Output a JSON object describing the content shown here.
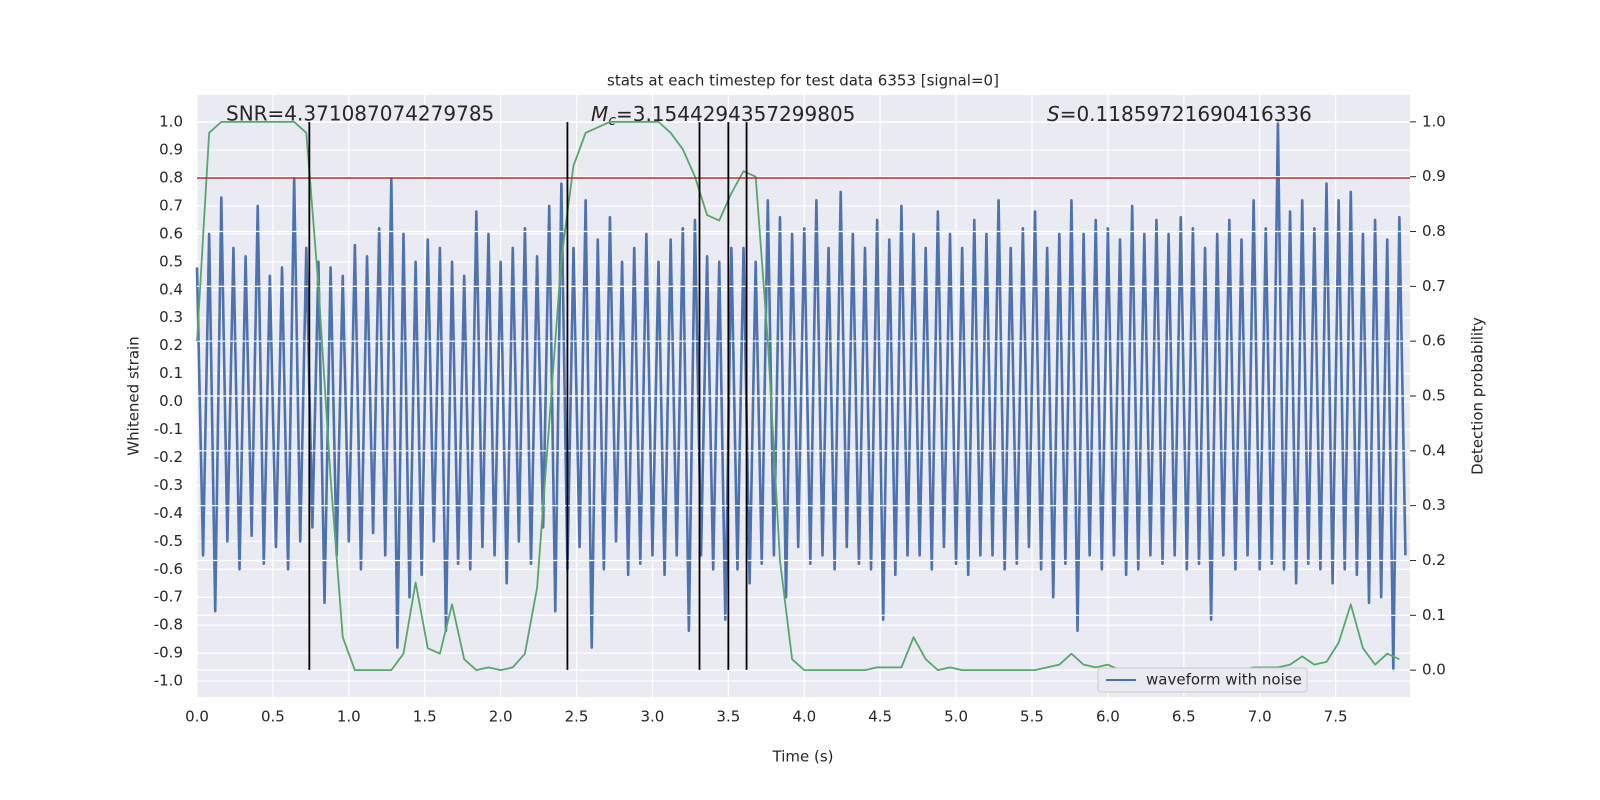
{
  "chart_data": {
    "type": "line",
    "title": "stats at each timestep for test data 6353 [signal=0]",
    "xlabel": "Time (s)",
    "ylabel": "Whitened strain",
    "y2label": "Detection probability",
    "annotations": {
      "snr": "SNR=4.371087074279785",
      "mc_symbol": "M",
      "mc_subscript": "c",
      "mc_value": "=3.1544294357299805",
      "s_symbol": "S",
      "s_value": "=0.11859721690416336"
    },
    "xlim": [
      0,
      7.99
    ],
    "ylim": [
      -1.057,
      1.097
    ],
    "y2lim": [
      -0.049,
      1.049
    ],
    "xticks": [
      {
        "value": 0,
        "label": "0.0"
      },
      0.5,
      {
        "value": 1,
        "label": "1.0"
      },
      1.5,
      {
        "value": 2,
        "label": "2.0"
      },
      2.5,
      {
        "value": 3,
        "label": "3.0"
      },
      3.5,
      {
        "value": 4,
        "label": "4.0"
      },
      4.5,
      {
        "value": 5,
        "label": "5.0"
      },
      5.5,
      {
        "value": 6,
        "label": "6.0"
      },
      6.5,
      {
        "value": 7,
        "label": "7.0"
      },
      7.5
    ],
    "yticks": [
      {
        "value": -1,
        "label": "-1.0"
      },
      -0.9,
      -0.8,
      -0.7,
      -0.6,
      -0.5,
      -0.4,
      -0.3,
      -0.2,
      -0.1,
      {
        "value": 0,
        "label": "0.0"
      },
      0.1,
      0.2,
      0.3,
      0.4,
      0.5,
      0.6,
      0.7,
      0.8,
      0.9,
      {
        "value": 1,
        "label": "1.0"
      }
    ],
    "y2ticks": [
      {
        "value": 0,
        "label": "0.0"
      },
      0.1,
      0.2,
      0.3,
      0.4,
      0.5,
      0.6,
      0.7,
      0.8,
      0.9,
      {
        "value": 1,
        "label": "1.0"
      }
    ],
    "grid": true,
    "legend_loc": "lower right",
    "hline": {
      "y": 0.8,
      "color": "#b5302f"
    },
    "vlines": {
      "x": [
        0.74,
        2.44,
        3.31,
        3.5,
        3.62
      ],
      "ymin": -0.96,
      "ymax": 1.0,
      "color": "#000000"
    },
    "series": [
      {
        "name": "waveform with noise",
        "color": "#4c72b0",
        "x": [
          0,
          0.04,
          0.08,
          0.12,
          0.16,
          0.2,
          0.24,
          0.28,
          0.32,
          0.36,
          0.4,
          0.44,
          0.48,
          0.52,
          0.56,
          0.6,
          0.64,
          0.68,
          0.72,
          0.76,
          0.8,
          0.84,
          0.88,
          0.92,
          0.96,
          1,
          1.04,
          1.08,
          1.12,
          1.16,
          1.2,
          1.24,
          1.28,
          1.32,
          1.36,
          1.4,
          1.44,
          1.48,
          1.52,
          1.56,
          1.6,
          1.64,
          1.68,
          1.72,
          1.76,
          1.8,
          1.84,
          1.88,
          1.92,
          1.96,
          2,
          2.04,
          2.08,
          2.12,
          2.16,
          2.2,
          2.24,
          2.28,
          2.32,
          2.36,
          2.4,
          2.44,
          2.48,
          2.52,
          2.56,
          2.6,
          2.64,
          2.68,
          2.72,
          2.76,
          2.8,
          2.84,
          2.88,
          2.92,
          2.96,
          3,
          3.04,
          3.08,
          3.12,
          3.16,
          3.2,
          3.24,
          3.28,
          3.32,
          3.36,
          3.4,
          3.44,
          3.48,
          3.52,
          3.56,
          3.6,
          3.64,
          3.68,
          3.72,
          3.76,
          3.8,
          3.84,
          3.88,
          3.92,
          3.96,
          4,
          4.04,
          4.08,
          4.12,
          4.16,
          4.2,
          4.24,
          4.28,
          4.32,
          4.36,
          4.4,
          4.44,
          4.48,
          4.52,
          4.56,
          4.6,
          4.64,
          4.68,
          4.72,
          4.76,
          4.8,
          4.84,
          4.88,
          4.92,
          4.96,
          5,
          5.04,
          5.08,
          5.12,
          5.16,
          5.2,
          5.24,
          5.28,
          5.32,
          5.36,
          5.4,
          5.44,
          5.48,
          5.52,
          5.56,
          5.6,
          5.64,
          5.68,
          5.72,
          5.76,
          5.8,
          5.84,
          5.88,
          5.92,
          5.96,
          6,
          6.04,
          6.08,
          6.12,
          6.16,
          6.2,
          6.24,
          6.28,
          6.32,
          6.36,
          6.4,
          6.44,
          6.48,
          6.52,
          6.56,
          6.6,
          6.64,
          6.68,
          6.72,
          6.76,
          6.8,
          6.84,
          6.88,
          6.92,
          6.96,
          7,
          7.04,
          7.08,
          7.12,
          7.16,
          7.2,
          7.24,
          7.28,
          7.32,
          7.36,
          7.4,
          7.44,
          7.48,
          7.52,
          7.56,
          7.6,
          7.64,
          7.68,
          7.72,
          7.76,
          7.8,
          7.84,
          7.88,
          7.92,
          7.96
        ],
        "values": [
          0.48,
          -0.55,
          0.6,
          -0.75,
          0.73,
          -0.5,
          0.55,
          -0.6,
          0.52,
          -0.48,
          0.7,
          -0.58,
          0.45,
          -0.52,
          0.48,
          -0.6,
          0.8,
          -0.5,
          0.55,
          -0.45,
          0.5,
          -0.72,
          0.48,
          -0.55,
          0.45,
          -0.5,
          0.56,
          -0.6,
          0.52,
          -0.47,
          0.62,
          -0.55,
          0.8,
          -0.88,
          0.6,
          -0.7,
          0.5,
          -0.62,
          0.58,
          -0.5,
          0.55,
          -0.82,
          0.5,
          -0.58,
          0.45,
          -0.6,
          0.68,
          -0.52,
          0.6,
          -0.55,
          0.5,
          -0.65,
          0.55,
          -0.5,
          0.62,
          -0.58,
          0.52,
          -0.45,
          0.7,
          -0.75,
          0.78,
          -0.6,
          0.55,
          -0.52,
          0.72,
          -0.88,
          0.58,
          -0.6,
          0.66,
          -0.5,
          0.5,
          -0.62,
          0.55,
          -0.58,
          0.6,
          -0.55,
          0.5,
          -0.62,
          0.58,
          -0.55,
          0.62,
          -0.82,
          0.65,
          -0.55,
          0.52,
          -0.6,
          0.5,
          -0.78,
          0.55,
          -0.6,
          0.55,
          -0.65,
          0.5,
          -0.58,
          0.72,
          -0.55,
          0.66,
          -0.7,
          0.6,
          -0.52,
          0.62,
          -0.58,
          0.72,
          -0.55,
          0.55,
          -0.6,
          0.75,
          -0.52,
          0.6,
          -0.58,
          0.55,
          -0.6,
          0.65,
          -0.78,
          0.58,
          -0.62,
          0.7,
          -0.55,
          0.6,
          -0.55,
          0.55,
          -0.6,
          0.68,
          -0.52,
          0.6,
          -0.58,
          0.55,
          -0.62,
          0.65,
          -0.55,
          0.6,
          -0.55,
          0.72,
          -0.6,
          0.55,
          -0.58,
          0.62,
          -0.52,
          0.68,
          -0.6,
          0.55,
          -0.7,
          0.6,
          -0.58,
          0.72,
          -0.82,
          0.6,
          -0.55,
          0.65,
          -0.6,
          0.62,
          -0.55,
          0.58,
          -0.62,
          0.7,
          -0.6,
          0.6,
          -0.55,
          0.65,
          -0.58,
          0.6,
          -0.55,
          0.66,
          -0.6,
          0.62,
          -0.58,
          0.55,
          -0.78,
          0.6,
          -0.55,
          0.65,
          -0.6,
          0.58,
          -0.55,
          0.72,
          -0.6,
          0.62,
          -0.58,
          1.0,
          -0.6,
          0.68,
          -0.65,
          0.72,
          -0.58,
          0.62,
          -0.6,
          0.78,
          -0.65,
          0.72,
          -0.6,
          0.75,
          -0.62,
          0.6,
          -0.72,
          0.65,
          -0.7,
          0.58,
          -0.96,
          0.66,
          -0.55
        ]
      },
      {
        "color": "#55a868",
        "axis": "y2",
        "x": [
          0,
          0.08,
          0.16,
          0.24,
          0.32,
          0.4,
          0.48,
          0.56,
          0.64,
          0.72,
          0.8,
          0.88,
          0.96,
          1.04,
          1.12,
          1.2,
          1.28,
          1.36,
          1.44,
          1.52,
          1.6,
          1.68,
          1.76,
          1.84,
          1.92,
          2,
          2.08,
          2.16,
          2.24,
          2.32,
          2.4,
          2.48,
          2.56,
          2.64,
          2.72,
          2.8,
          2.88,
          2.96,
          3.04,
          3.12,
          3.2,
          3.28,
          3.36,
          3.44,
          3.52,
          3.6,
          3.68,
          3.76,
          3.84,
          3.92,
          4,
          4.08,
          4.16,
          4.24,
          4.32,
          4.4,
          4.48,
          4.56,
          4.64,
          4.72,
          4.8,
          4.88,
          4.96,
          5.04,
          5.12,
          5.2,
          5.28,
          5.36,
          5.44,
          5.52,
          5.6,
          5.68,
          5.76,
          5.84,
          5.92,
          6,
          6.08,
          6.16,
          6.24,
          6.32,
          6.4,
          6.48,
          6.56,
          6.64,
          6.72,
          6.8,
          6.88,
          6.96,
          7.04,
          7.12,
          7.2,
          7.28,
          7.36,
          7.44,
          7.52,
          7.6,
          7.68,
          7.76,
          7.84,
          7.92
        ],
        "values": [
          0.6,
          0.98,
          1.0,
          1.0,
          1.0,
          1.0,
          1.0,
          1.0,
          1.0,
          0.98,
          0.7,
          0.35,
          0.06,
          0.0,
          0.0,
          0.0,
          0.0,
          0.03,
          0.16,
          0.04,
          0.03,
          0.12,
          0.02,
          0.0,
          0.005,
          0.0,
          0.005,
          0.03,
          0.15,
          0.45,
          0.75,
          0.92,
          0.98,
          0.99,
          1.0,
          1.0,
          1.0,
          1.0,
          1.0,
          0.98,
          0.95,
          0.9,
          0.83,
          0.82,
          0.87,
          0.91,
          0.9,
          0.6,
          0.2,
          0.02,
          0.0,
          0.0,
          0.0,
          0.0,
          0.0,
          0.0,
          0.005,
          0.005,
          0.005,
          0.06,
          0.02,
          0.0,
          0.005,
          0.0,
          0.0,
          0.0,
          0.0,
          0.0,
          0.0,
          0.0,
          0.005,
          0.01,
          0.03,
          0.01,
          0.005,
          0.01,
          0.0,
          0.0,
          0.0,
          0.0,
          0.0,
          0.0,
          0.0,
          0.0,
          0.0,
          0.0,
          0.0,
          0.005,
          0.005,
          0.005,
          0.01,
          0.025,
          0.01,
          0.015,
          0.05,
          0.12,
          0.04,
          0.01,
          0.03,
          0.02
        ]
      }
    ]
  }
}
